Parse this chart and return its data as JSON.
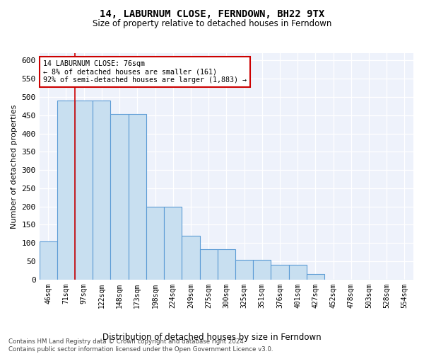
{
  "title": "14, LABURNUM CLOSE, FERNDOWN, BH22 9TX",
  "subtitle": "Size of property relative to detached houses in Ferndown",
  "xlabel": "Distribution of detached houses by size in Ferndown",
  "ylabel": "Number of detached properties",
  "bar_labels": [
    "46sqm",
    "71sqm",
    "97sqm",
    "122sqm",
    "148sqm",
    "173sqm",
    "198sqm",
    "224sqm",
    "249sqm",
    "275sqm",
    "300sqm",
    "325sqm",
    "351sqm",
    "376sqm",
    "401sqm",
    "427sqm",
    "452sqm",
    "478sqm",
    "503sqm",
    "528sqm",
    "554sqm"
  ],
  "bar_values": [
    105,
    490,
    490,
    490,
    453,
    453,
    200,
    200,
    120,
    83,
    83,
    55,
    55,
    40,
    40,
    15,
    0,
    0,
    0,
    0,
    0
  ],
  "bar_color": "#c8dff0",
  "bar_edge_color": "#5b9bd5",
  "property_line_x": 1.5,
  "property_line_color": "#cc0000",
  "annotation_text": "14 LABURNUM CLOSE: 76sqm\n← 8% of detached houses are smaller (161)\n92% of semi-detached houses are larger (1,883) →",
  "annotation_box_color": "#cc0000",
  "ylim": [
    0,
    620
  ],
  "yticks": [
    0,
    50,
    100,
    150,
    200,
    250,
    300,
    350,
    400,
    450,
    500,
    550,
    600
  ],
  "footer_line1": "Contains HM Land Registry data © Crown copyright and database right 2024.",
  "footer_line2": "Contains public sector information licensed under the Open Government Licence v3.0.",
  "background_color": "#eef2fb"
}
